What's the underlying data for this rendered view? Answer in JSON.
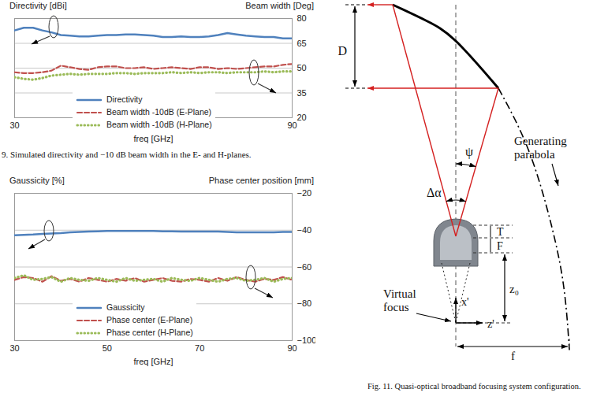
{
  "chart_data": [
    {
      "type": "line",
      "caption": "9. Simulated directivity and −10 dB beam width in the E- and H-planes.",
      "x_label": "freq [GHz]",
      "y_label": "Directivity [dBi]",
      "y2_label": "Beam width [Deg]",
      "x": [
        30,
        32,
        34,
        36,
        38,
        40,
        42,
        44,
        46,
        48,
        50,
        52,
        54,
        56,
        58,
        60,
        62,
        64,
        66,
        68,
        70,
        72,
        74,
        76,
        78,
        80,
        82,
        84,
        86,
        88,
        90
      ],
      "xlim": [
        30,
        90
      ],
      "xticks": [
        30,
        50,
        70,
        90
      ],
      "ylim": [
        10,
        25
      ],
      "y2lim": [
        20,
        80
      ],
      "y2ticks": [
        20,
        35,
        50,
        65,
        80
      ],
      "grid": true,
      "legend": "lower left",
      "series": [
        {
          "name": "Directivity",
          "color": "#4f81bd",
          "line_style": "solid",
          "values": [
            23.2,
            23.6,
            23.6,
            23.2,
            22.9,
            22.5,
            22.4,
            22.3,
            22.3,
            22.4,
            22.5,
            22.5,
            22.6,
            22.6,
            22.5,
            22.4,
            22.2,
            22.2,
            22.3,
            22.2,
            22.2,
            22.3,
            22.5,
            22.8,
            22.6,
            22.4,
            22.3,
            22.2,
            22.2,
            22.0,
            22.0
          ]
        },
        {
          "name": "Beam width -10dB (E-Plane)",
          "color": "#c0504d",
          "line_style": "dashed",
          "axis": "y2",
          "values": [
            47.5,
            47,
            47,
            47.5,
            48.5,
            51.5,
            50.5,
            49.5,
            49,
            50.5,
            51,
            51,
            50,
            50,
            50.5,
            49.5,
            50,
            50.5,
            50,
            49.5,
            50.5,
            50.5,
            49.5,
            50,
            49.5,
            50,
            50.5,
            51,
            51,
            52,
            52.5
          ]
        },
        {
          "name": "Beam width -10dB (H-Plane)",
          "color": "#9bbb59",
          "line_style": "dotted",
          "axis": "y2",
          "values": [
            44.5,
            43.5,
            43,
            44,
            45.5,
            46,
            46.5,
            46,
            46.5,
            46.5,
            46.5,
            47,
            47,
            46.5,
            47,
            47,
            47,
            47.5,
            47,
            47.5,
            47,
            47.5,
            47.5,
            47,
            47.5,
            47.5,
            47.5,
            48,
            47.5,
            48,
            48
          ]
        }
      ]
    },
    {
      "type": "line",
      "x_label": "freq [GHz]",
      "y_label": "Gaussicity [%]",
      "y2_label": "Phase center position [mm]",
      "x": [
        30,
        32,
        34,
        36,
        38,
        40,
        42,
        44,
        46,
        48,
        50,
        52,
        54,
        56,
        58,
        60,
        62,
        64,
        66,
        68,
        70,
        72,
        74,
        76,
        78,
        80,
        82,
        84,
        86,
        88,
        90
      ],
      "xlim": [
        30,
        90
      ],
      "xticks": [
        30,
        50,
        70,
        90
      ],
      "ylim": [
        80,
        100
      ],
      "y2lim": [
        -100,
        -20
      ],
      "y2ticks": [
        -20,
        -40,
        -60,
        -80,
        -100
      ],
      "grid": true,
      "legend": "lower left",
      "series": [
        {
          "name": "Gaussicity",
          "color": "#4f81bd",
          "line_style": "solid",
          "values": [
            94.3,
            94.35,
            94.4,
            94.5,
            94.55,
            94.6,
            94.7,
            94.75,
            94.8,
            94.85,
            94.9,
            94.9,
            94.9,
            94.9,
            94.9,
            94.9,
            94.85,
            94.85,
            94.8,
            94.8,
            94.8,
            94.8,
            94.8,
            94.75,
            94.7,
            94.7,
            94.7,
            94.7,
            94.7,
            94.75,
            94.75
          ]
        },
        {
          "name": "Phase center (E-Plane)",
          "color": "#c0504d",
          "line_style": "dashed",
          "axis": "y2",
          "values": [
            -67,
            -65.5,
            -66,
            -68,
            -65,
            -67.5,
            -66.5,
            -68,
            -66,
            -67,
            -68,
            -66.5,
            -67.5,
            -66,
            -68,
            -67,
            -66,
            -67.5,
            -68,
            -66.5,
            -67,
            -68,
            -66,
            -67.5,
            -65.5,
            -67,
            -68,
            -66.5,
            -67,
            -65.5,
            -67
          ]
        },
        {
          "name": "Phase center (H-Plane)",
          "color": "#9bbb59",
          "line_style": "dotted",
          "axis": "y2",
          "values": [
            -66,
            -64.5,
            -67,
            -66.5,
            -65.5,
            -68,
            -66,
            -67,
            -67.5,
            -66,
            -67,
            -68,
            -66,
            -67.5,
            -67,
            -66.5,
            -68,
            -66,
            -67,
            -67.5,
            -66,
            -67,
            -68,
            -66.5,
            -66,
            -67.5,
            -67,
            -66,
            -68,
            -66.5,
            -66
          ]
        }
      ]
    }
  ],
  "diagram": {
    "caption": "Fig. 11. Quasi-optical broadband focusing system configuration.",
    "labels": {
      "aperture": "D",
      "parabola": [
        "Generating",
        "parabola"
      ],
      "half_angle": "ψ",
      "feed_angle": "Δα",
      "thickness": "T",
      "focal": "F",
      "offset": "z₀",
      "virtual_focus": [
        "Virtual",
        "focus"
      ],
      "x_axis": "x'",
      "z_axis": "z'",
      "focal_length": "f"
    }
  }
}
